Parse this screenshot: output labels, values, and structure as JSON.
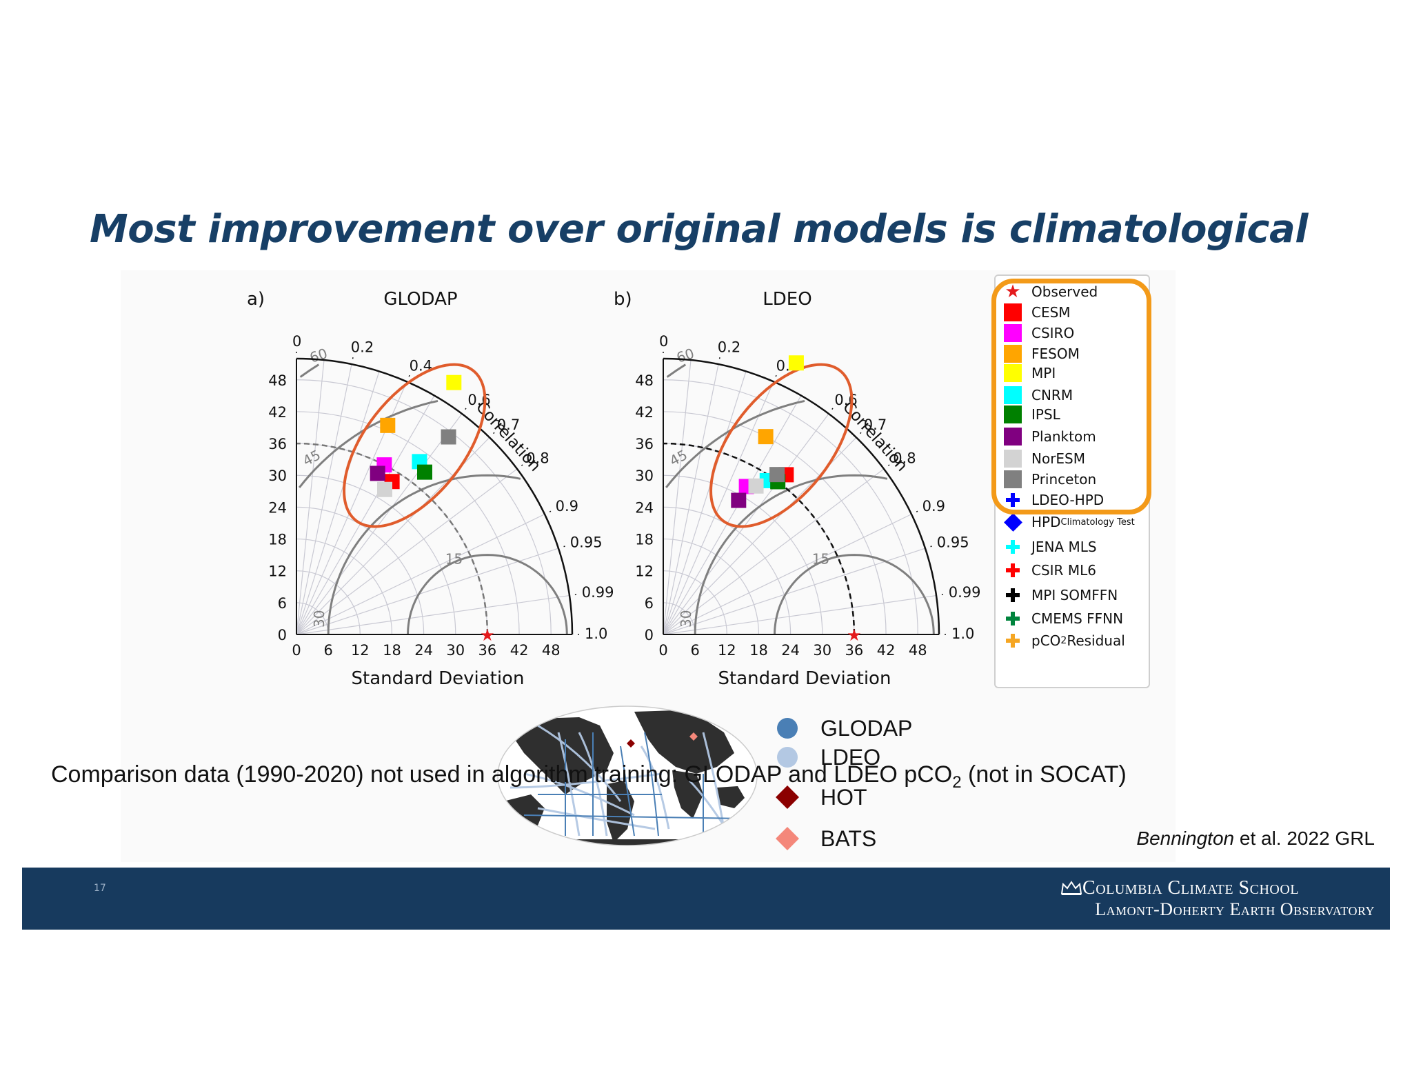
{
  "slide": {
    "title": "Most improvement over original models is climatological",
    "slide_number": "17",
    "footer_line1": "Columbia Climate School",
    "footer_line2": "Lamont-Doherty Earth Observatory",
    "citation_author": "Bennington",
    "citation_rest": " et al. 2022 GRL",
    "caption_part1": "Comparison data (1990-2020) not used in algorithm training: GLODAP and LDEO pCO",
    "caption_sub": "2",
    "caption_part2": " (not in SOCAT)"
  },
  "legend": {
    "items": [
      {
        "label": "Observed",
        "symbol": "star",
        "color": "#e41a1c"
      },
      {
        "label": "CESM",
        "symbol": "square",
        "color": "#ff0000"
      },
      {
        "label": "CSIRO",
        "symbol": "square",
        "color": "#ff00ff"
      },
      {
        "label": "FESOM",
        "symbol": "square",
        "color": "#ffa500"
      },
      {
        "label": "MPI",
        "symbol": "square",
        "color": "#ffff00"
      },
      {
        "label": "CNRM",
        "symbol": "square",
        "color": "#00ffff"
      },
      {
        "label": "IPSL",
        "symbol": "square",
        "color": "#008000"
      },
      {
        "label": "Planktom",
        "symbol": "square",
        "color": "#800080"
      },
      {
        "label": "NorESM",
        "symbol": "square",
        "color": "#d3d3d3"
      },
      {
        "label": "Princeton",
        "symbol": "square",
        "color": "#808080"
      },
      {
        "label": "LDEO-HPD",
        "symbol": "plus",
        "color": "#0000ff"
      },
      {
        "label": "HPD",
        "sub": "Climatology Test",
        "symbol": "diamond",
        "color": "#0000ff"
      },
      {
        "label": "JENA MLS",
        "symbol": "plus",
        "color": "#00ffff"
      },
      {
        "label": "CSIR ML6",
        "symbol": "plus",
        "color": "#ff0000"
      },
      {
        "label": "MPI SOMFFN",
        "symbol": "plus",
        "color": "#000000"
      },
      {
        "label": "CMEMS FFNN",
        "symbol": "plus",
        "color": "#00843d"
      },
      {
        "label": "pCO",
        "sub": "2",
        "label_after": " Residual",
        "symbol": "plus",
        "color": "#f5a623"
      }
    ]
  },
  "map_legend": {
    "items": [
      {
        "label": "GLODAP",
        "symbol": "circle",
        "color": "#4a7fb5"
      },
      {
        "label": "LDEO",
        "symbol": "circle",
        "color": "#b3c8e3"
      },
      {
        "label": "HOT",
        "symbol": "diamond",
        "color": "#8b0000"
      },
      {
        "label": "BATS",
        "symbol": "diamond",
        "color": "#f4877a"
      }
    ]
  },
  "chart_data": [
    {
      "type": "taylor",
      "panel_label": "a)",
      "title": "GLODAP",
      "xlabel": "Standard Deviation",
      "corr_label": "Correlation",
      "std_ticks": [
        0,
        6,
        12,
        18,
        24,
        30,
        36,
        42,
        48
      ],
      "std_max": 52,
      "corr_ticks": [
        0,
        0.2,
        0.4,
        0.6,
        0.7,
        0.8,
        0.9,
        0.95,
        0.99,
        1.0
      ],
      "rms_contours": [
        15,
        30,
        45,
        60
      ],
      "observed_std": 36,
      "points": [
        {
          "name": "CESM",
          "corr": 0.53,
          "std": 34,
          "color": "#ff0000"
        },
        {
          "name": "CSIRO",
          "corr": 0.46,
          "std": 36,
          "color": "#ff00ff"
        },
        {
          "name": "FESOM",
          "corr": 0.4,
          "std": 43,
          "color": "#ffa500"
        },
        {
          "name": "MPI",
          "corr": 0.53,
          "std": 56,
          "color": "#ffff00"
        },
        {
          "name": "CNRM",
          "corr": 0.58,
          "std": 40,
          "color": "#00ffff"
        },
        {
          "name": "IPSL",
          "corr": 0.62,
          "std": 39,
          "color": "#008000"
        },
        {
          "name": "Planktom",
          "corr": 0.45,
          "std": 34,
          "color": "#800080"
        },
        {
          "name": "NorESM",
          "corr": 0.52,
          "std": 32,
          "color": "#d3d3d3"
        },
        {
          "name": "Princeton",
          "corr": 0.61,
          "std": 47,
          "color": "#808080"
        }
      ],
      "ellipse_color": "#e05c2c"
    },
    {
      "type": "taylor",
      "panel_label": "b)",
      "title": "LDEO",
      "xlabel": "Standard Deviation",
      "corr_label": "Correlation",
      "std_ticks": [
        0,
        6,
        12,
        18,
        24,
        30,
        36,
        42,
        48
      ],
      "std_max": 52,
      "corr_ticks": [
        0,
        0.2,
        0.4,
        0.6,
        0.7,
        0.8,
        0.9,
        0.95,
        0.99,
        1.0
      ],
      "rms_contours": [
        15,
        30,
        45,
        60
      ],
      "observed_std": 36,
      "points": [
        {
          "name": "CESM",
          "corr": 0.61,
          "std": 38,
          "color": "#ff0000"
        },
        {
          "name": "CSIRO",
          "corr": 0.49,
          "std": 32,
          "color": "#ff00ff"
        },
        {
          "name": "FESOM",
          "corr": 0.46,
          "std": 42,
          "color": "#ffa500"
        },
        {
          "name": "MPI",
          "corr": 0.44,
          "std": 57,
          "color": "#ffff00"
        },
        {
          "name": "CNRM",
          "corr": 0.56,
          "std": 35,
          "color": "#00ffff"
        },
        {
          "name": "IPSL",
          "corr": 0.6,
          "std": 36,
          "color": "#008000"
        },
        {
          "name": "Planktom",
          "corr": 0.49,
          "std": 29,
          "color": "#800080"
        },
        {
          "name": "NorESM",
          "corr": 0.53,
          "std": 33,
          "color": "#d3d3d3"
        },
        {
          "name": "Princeton",
          "corr": 0.58,
          "std": 37,
          "color": "#808080"
        }
      ],
      "ellipse_color": "#e05c2c"
    }
  ]
}
